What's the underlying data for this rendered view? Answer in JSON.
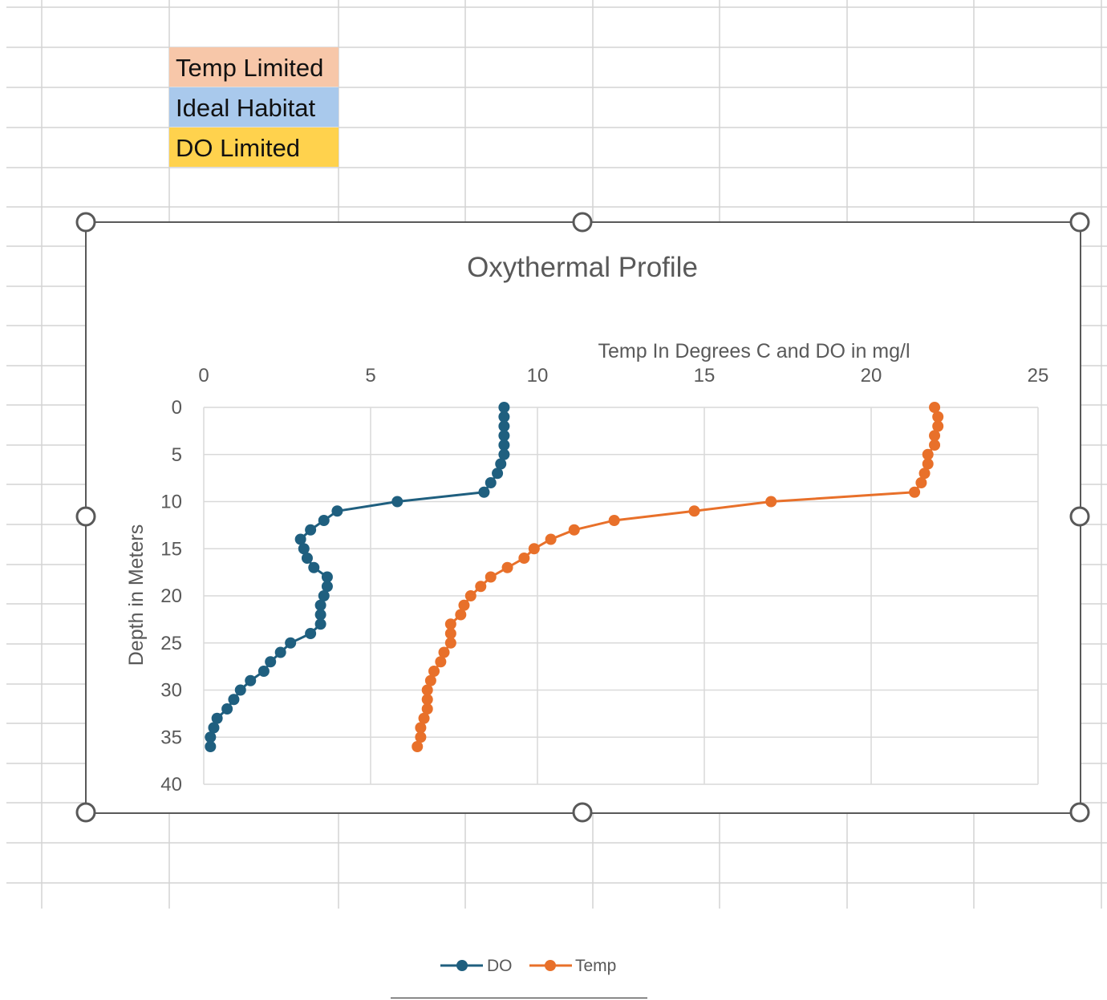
{
  "sheet_cells": [
    {
      "text": "Temp Limited",
      "color": "#f7c7a9"
    },
    {
      "text": "Ideal Habitat",
      "color": "#a9c9ec"
    },
    {
      "text": "DO Limited",
      "color": "#ffd24d"
    }
  ],
  "chart_data": {
    "type": "line",
    "title": "Oxythermal Profile",
    "xlabel": "Temp In Degrees C and DO in mg/l",
    "ylabel": "Depth in Meters",
    "xlim": [
      0,
      25
    ],
    "ylim": [
      0,
      40
    ],
    "x_ticks": [
      "0",
      "5",
      "10",
      "15",
      "20",
      "25"
    ],
    "y_ticks": [
      "0",
      "5",
      "10",
      "15",
      "20",
      "25",
      "30",
      "35",
      "40"
    ],
    "x_axis_position": "top",
    "y_axis_reversed": true,
    "grid": true,
    "legend_position": "bottom",
    "series": [
      {
        "name": "DO",
        "color": "#1f5f7f",
        "points": [
          [
            9.0,
            0
          ],
          [
            9.0,
            1
          ],
          [
            9.0,
            2
          ],
          [
            9.0,
            3
          ],
          [
            9.0,
            4
          ],
          [
            9.0,
            5
          ],
          [
            8.9,
            6
          ],
          [
            8.8,
            7
          ],
          [
            8.6,
            8
          ],
          [
            8.4,
            9
          ],
          [
            5.8,
            10
          ],
          [
            4.0,
            11
          ],
          [
            3.6,
            12
          ],
          [
            3.2,
            13
          ],
          [
            2.9,
            14
          ],
          [
            3.0,
            15
          ],
          [
            3.1,
            16
          ],
          [
            3.3,
            17
          ],
          [
            3.7,
            18
          ],
          [
            3.7,
            19
          ],
          [
            3.6,
            20
          ],
          [
            3.5,
            21
          ],
          [
            3.5,
            22
          ],
          [
            3.5,
            23
          ],
          [
            3.2,
            24
          ],
          [
            2.6,
            25
          ],
          [
            2.3,
            26
          ],
          [
            2.0,
            27
          ],
          [
            1.8,
            28
          ],
          [
            1.4,
            29
          ],
          [
            1.1,
            30
          ],
          [
            0.9,
            31
          ],
          [
            0.7,
            32
          ],
          [
            0.4,
            33
          ],
          [
            0.3,
            34
          ],
          [
            0.2,
            35
          ],
          [
            0.2,
            36
          ]
        ]
      },
      {
        "name": "Temp",
        "color": "#e8702a",
        "points": [
          [
            21.9,
            0
          ],
          [
            22.0,
            1
          ],
          [
            22.0,
            2
          ],
          [
            21.9,
            3
          ],
          [
            21.9,
            4
          ],
          [
            21.7,
            5
          ],
          [
            21.7,
            6
          ],
          [
            21.6,
            7
          ],
          [
            21.5,
            8
          ],
          [
            21.3,
            9
          ],
          [
            17.0,
            10
          ],
          [
            14.7,
            11
          ],
          [
            12.3,
            12
          ],
          [
            11.1,
            13
          ],
          [
            10.4,
            14
          ],
          [
            9.9,
            15
          ],
          [
            9.6,
            16
          ],
          [
            9.1,
            17
          ],
          [
            8.6,
            18
          ],
          [
            8.3,
            19
          ],
          [
            8.0,
            20
          ],
          [
            7.8,
            21
          ],
          [
            7.7,
            22
          ],
          [
            7.4,
            23
          ],
          [
            7.4,
            24
          ],
          [
            7.4,
            25
          ],
          [
            7.2,
            26
          ],
          [
            7.1,
            27
          ],
          [
            6.9,
            28
          ],
          [
            6.8,
            29
          ],
          [
            6.7,
            30
          ],
          [
            6.7,
            31
          ],
          [
            6.7,
            32
          ],
          [
            6.6,
            33
          ],
          [
            6.5,
            34
          ],
          [
            6.5,
            35
          ],
          [
            6.4,
            36
          ]
        ]
      }
    ]
  }
}
